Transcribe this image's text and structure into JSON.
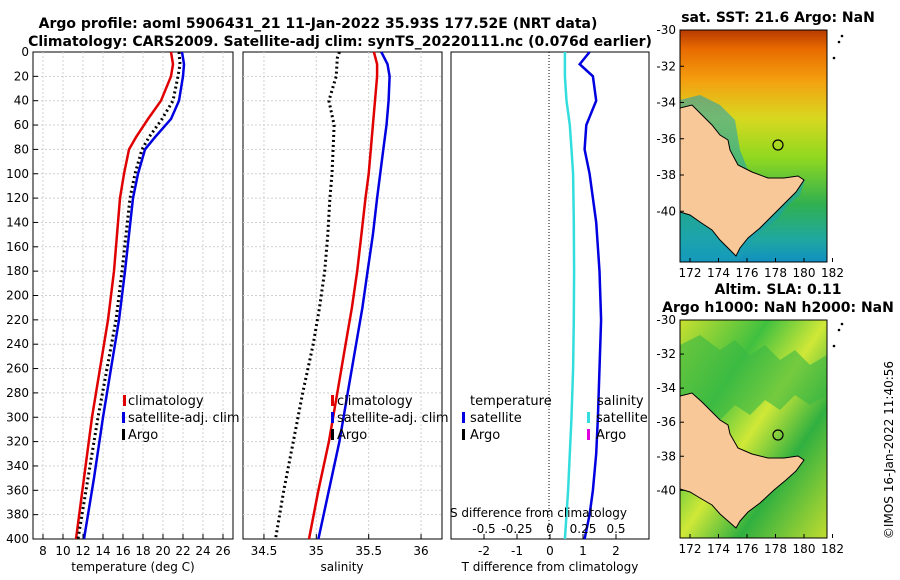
{
  "header": {
    "title_line1": "Argo profile: aoml 5906431_21 11-Jan-2022 35.93S 177.52E (NRT data)",
    "title_line2": "Climatology: CARS2009. Satellite-adj clim: synTS_20220111.nc (0.076d earlier)"
  },
  "footer": {
    "credit": "©IMOS 16-Jan-2022 11:40:56"
  },
  "colors": {
    "climatology": "#e00000",
    "satellite": "#0000e0",
    "argo": "#000000",
    "salinity_sat": "#33dddd",
    "salinity_argo": "#e000e0"
  },
  "chart_data": [
    {
      "type": "line",
      "title": "Temperature profile",
      "xlabel": "temperature (deg C)",
      "ylabel": "depth",
      "xlim": [
        7,
        27
      ],
      "ylim": [
        400,
        0
      ],
      "xticks": [
        8,
        10,
        12,
        14,
        16,
        18,
        20,
        22,
        24,
        26
      ],
      "yticks": [
        0,
        20,
        40,
        60,
        80,
        100,
        120,
        140,
        160,
        180,
        200,
        220,
        240,
        260,
        280,
        300,
        320,
        340,
        360,
        380,
        400
      ],
      "legend": [
        "climatology",
        "satellite-adj. clim",
        "Argo"
      ],
      "series": [
        {
          "name": "climatology",
          "color": "#e00000",
          "x": [
            20.8,
            21.0,
            20.8,
            19.8,
            18.5,
            17.3,
            16.6,
            16.1,
            15.7,
            15.4,
            15.1,
            14.5,
            13.7,
            12.9,
            12.1,
            11.3
          ],
          "y": [
            0,
            10,
            20,
            40,
            55,
            70,
            80,
            100,
            120,
            150,
            180,
            220,
            260,
            300,
            350,
            400
          ]
        },
        {
          "name": "satellite-adj. clim",
          "color": "#0000e0",
          "x": [
            21.9,
            22.1,
            22.0,
            21.6,
            20.8,
            19.2,
            18.2,
            17.5,
            17.0,
            16.6,
            16.2,
            15.6,
            14.8,
            14.0,
            13.1,
            12.1
          ],
          "y": [
            0,
            10,
            20,
            40,
            55,
            70,
            80,
            100,
            120,
            150,
            180,
            220,
            260,
            300,
            350,
            400
          ]
        },
        {
          "name": "Argo",
          "color": "#000000",
          "x": [
            21.6,
            21.7,
            21.5,
            21.0,
            19.9,
            18.6,
            17.9,
            17.2,
            16.7,
            16.3,
            15.9,
            15.3,
            14.4,
            13.5,
            12.5,
            11.5
          ],
          "y": [
            0,
            10,
            20,
            40,
            55,
            70,
            80,
            100,
            120,
            150,
            180,
            220,
            260,
            300,
            350,
            400
          ]
        }
      ]
    },
    {
      "type": "line",
      "title": "Salinity profile",
      "xlabel": "salinity",
      "ylabel": "depth",
      "xlim": [
        34.3,
        36.2
      ],
      "ylim": [
        400,
        0
      ],
      "xticks": [
        34.5,
        35,
        35.5,
        36
      ],
      "legend": [
        "climatology",
        "satellite-adj. clim",
        "Argo"
      ],
      "series": [
        {
          "name": "climatology",
          "color": "#e00000",
          "x": [
            35.55,
            35.58,
            35.58,
            35.56,
            35.54,
            35.52,
            35.5,
            35.47,
            35.43,
            35.39,
            35.34,
            35.28,
            35.2,
            35.12,
            35.02,
            34.93
          ],
          "y": [
            0,
            10,
            20,
            40,
            60,
            80,
            100,
            120,
            150,
            180,
            210,
            240,
            280,
            320,
            360,
            400
          ]
        },
        {
          "name": "satellite-adj. clim",
          "color": "#0000e0",
          "x": [
            35.62,
            35.68,
            35.7,
            35.69,
            35.67,
            35.64,
            35.61,
            35.58,
            35.54,
            35.49,
            35.44,
            35.38,
            35.3,
            35.22,
            35.12,
            35.02
          ],
          "y": [
            0,
            10,
            20,
            40,
            60,
            80,
            100,
            120,
            150,
            180,
            210,
            240,
            280,
            320,
            360,
            400
          ]
        },
        {
          "name": "Argo",
          "color": "#000000",
          "x": [
            35.22,
            35.2,
            35.19,
            35.12,
            35.17,
            35.16,
            35.15,
            35.13,
            35.11,
            35.08,
            35.03,
            34.97,
            34.87,
            34.78,
            34.69,
            34.61
          ],
          "y": [
            0,
            5,
            20,
            40,
            60,
            80,
            100,
            120,
            150,
            180,
            210,
            240,
            280,
            320,
            360,
            400
          ]
        }
      ]
    },
    {
      "type": "line",
      "title": "Difference from climatology",
      "xlabel": "T difference from climatology",
      "top_axis_label": "S difference from climatology",
      "xlim": [
        -3,
        3
      ],
      "xticks": [
        -2,
        -1,
        0,
        1,
        2
      ],
      "s_xlim": [
        -0.75,
        0.75
      ],
      "s_xticks": [
        "-0.5",
        "-0.25",
        "0",
        "0.25",
        "0.5"
      ],
      "legend_left": {
        "heading": "temperature",
        "items": [
          "satellite",
          "Argo"
        ]
      },
      "legend_right": {
        "heading": "salinity",
        "items": [
          "satellite",
          "Argo"
        ]
      },
      "series": [
        {
          "name": "temperature satellite",
          "color": "#0000e0",
          "x": [
            1.2,
            0.9,
            1.3,
            1.4,
            1.1,
            1.05,
            1.2,
            1.4,
            1.5,
            1.55,
            1.5,
            1.45,
            1.4,
            1.3,
            1.2,
            1.05
          ],
          "y": [
            0,
            10,
            20,
            40,
            60,
            80,
            100,
            140,
            180,
            220,
            260,
            300,
            330,
            360,
            380,
            400
          ]
        },
        {
          "name": "salinity satellite",
          "color": "#33dddd",
          "x": [
            0.45,
            0.45,
            0.5,
            0.6,
            0.65,
            0.7,
            0.72,
            0.73,
            0.72,
            0.7,
            0.65,
            0.6,
            0.55,
            0.5,
            0.45
          ],
          "y": [
            0,
            20,
            40,
            60,
            80,
            100,
            140,
            180,
            220,
            260,
            300,
            330,
            360,
            380,
            400
          ]
        }
      ]
    }
  ],
  "maps": [
    {
      "title": "sat. SST: 21.6 Argo: NaN",
      "lat_ticks": [
        "-30",
        "-32",
        "-34",
        "-36",
        "-38",
        "-40"
      ],
      "lon_ticks": [
        "172",
        "174",
        "176",
        "178",
        "180",
        "182"
      ]
    },
    {
      "title_line1": "Altim. SLA: 0.11",
      "title_line2": "Argo h1000: NaN h2000: NaN",
      "lat_ticks": [
        "-30",
        "-32",
        "-34",
        "-36",
        "-38",
        "-40"
      ],
      "lon_ticks": [
        "172",
        "174",
        "176",
        "178",
        "180",
        "182"
      ]
    }
  ]
}
